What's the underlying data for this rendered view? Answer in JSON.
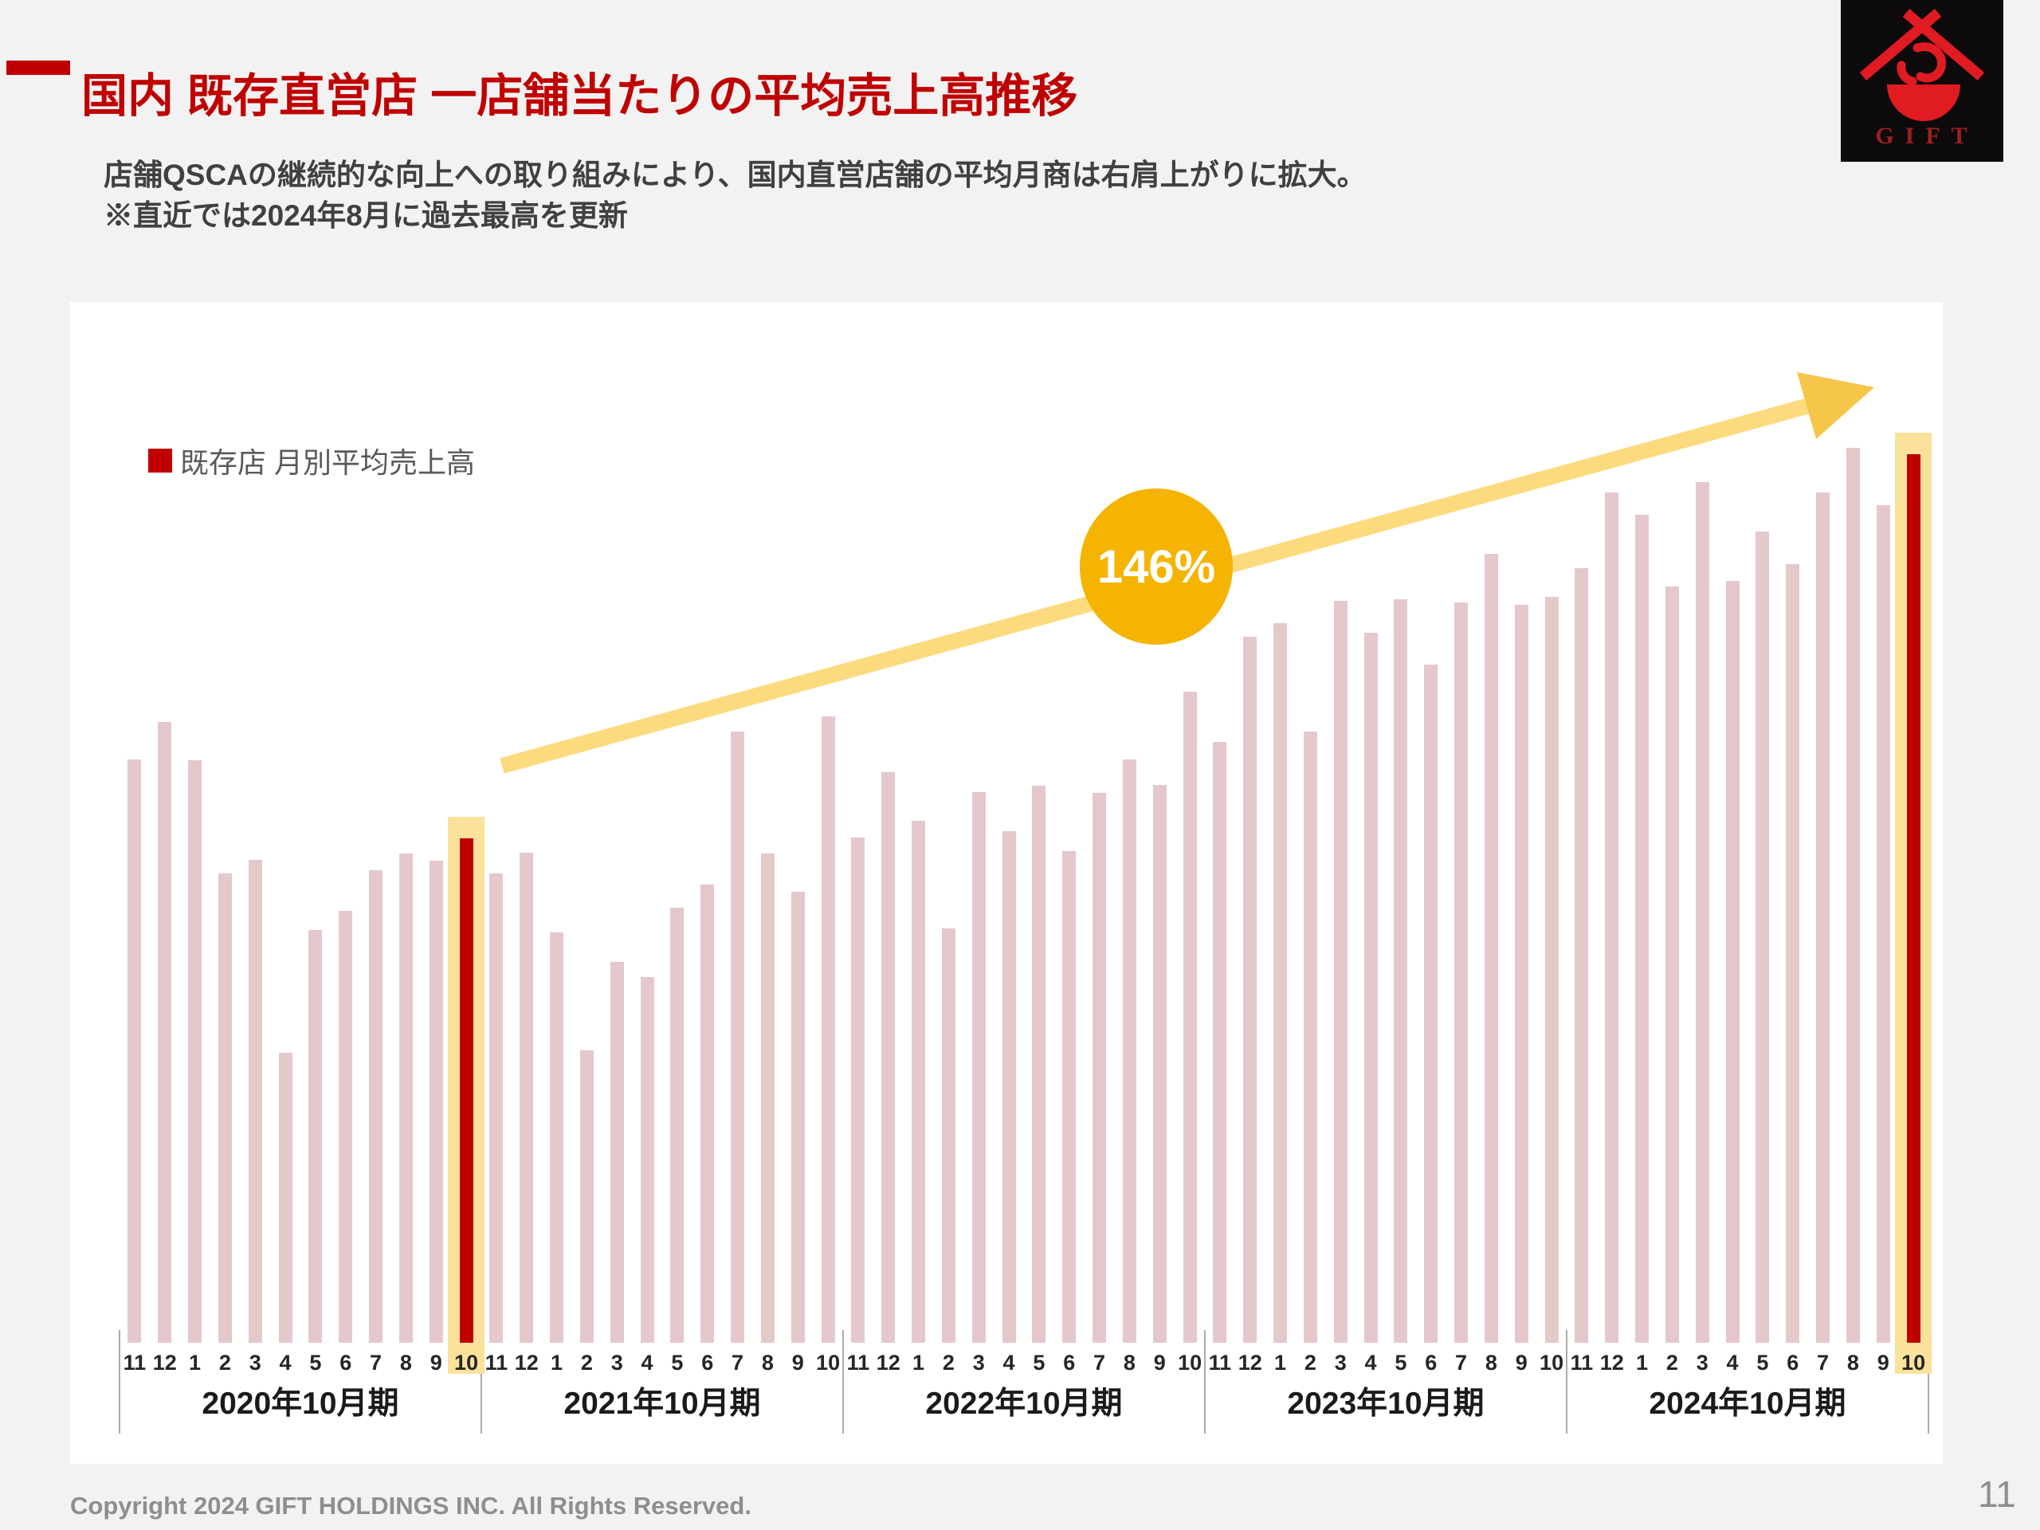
{
  "page": {
    "title": "国内 既存直営店 一店舗当たりの平均売上高推移",
    "subtitle_line1": "店舗QSCAの継続的な向上への取り組みにより、国内直営店舗の平均月商は右肩上がりに拡大。",
    "subtitle_line2": "※直近では2024年8月に過去最高を更新",
    "footer": "Copyright 2024 GIFT HOLDINGS INC. All Rights Reserved.",
    "page_number": "11",
    "logo_text": "GIFT"
  },
  "colors": {
    "accent_red": "#C00000",
    "title_red": "#C00000",
    "bar_pink": "#E5C8CB",
    "bar_red": "#C00000",
    "highlight_band": "#FBE29B",
    "arrow_shaft": "#FCDA7E",
    "arrow_head": "#F6C64A",
    "badge_circle": "#F5B402",
    "subtitle_gray": "#404040",
    "footer_gray": "#8E8E8E",
    "logo_background": "#0D0A0B",
    "logo_red": "#E01B22"
  },
  "chart_data": {
    "type": "bar",
    "title": "",
    "xlabel": "",
    "ylabel": "",
    "y_axis_visible": false,
    "grid": false,
    "legend_position": "top-left",
    "legend": [
      {
        "label": "既存店 月別平均売上高",
        "color": "#C00000"
      }
    ],
    "annotation": {
      "badge": "146%",
      "shape": "circle-with-rising-arrow"
    },
    "value_note": "relative monthly average sales index per store (no numeric axis shown in source)",
    "bar_color": "#E5C8CB",
    "highlight_bar_color": "#C00000",
    "band_color": "#FBE29B",
    "month_labels": [
      "11",
      "12",
      "1",
      "2",
      "3",
      "4",
      "5",
      "6",
      "7",
      "8",
      "9",
      "10"
    ],
    "groups": [
      {
        "label": "2020年10月期",
        "values": [
          73.2,
          77.9,
          73.1,
          58.9,
          60.6,
          36.4,
          51.8,
          54.2,
          59.3,
          61.4,
          60.5,
          63.3
        ],
        "highlight_month_index": 11
      },
      {
        "label": "2021年10月期",
        "values": [
          58.9,
          61.5,
          51.5,
          36.7,
          47.8,
          45.9,
          54.6,
          57.5,
          76.7,
          61.4,
          56.6,
          78.6
        ],
        "highlight_month_index": null
      },
      {
        "label": "2022年10月期",
        "values": [
          63.4,
          71.6,
          65.5,
          52.0,
          69.1,
          64.2,
          69.9,
          61.7,
          69.0,
          73.2,
          70.0,
          81.7
        ],
        "highlight_month_index": null
      },
      {
        "label": "2023年10月期",
        "values": [
          75.4,
          88.6,
          90.3,
          76.7,
          93.1,
          89.1,
          93.3,
          85.1,
          92.9,
          99.0,
          92.6,
          93.6
        ],
        "highlight_month_index": null
      },
      {
        "label": "2024年10月期",
        "values": [
          97.2,
          106.7,
          103.9,
          94.9,
          108.0,
          95.6,
          101.8,
          97.7,
          106.7,
          112.3,
          105.1,
          111.5
        ],
        "highlight_month_index": 11
      }
    ]
  }
}
